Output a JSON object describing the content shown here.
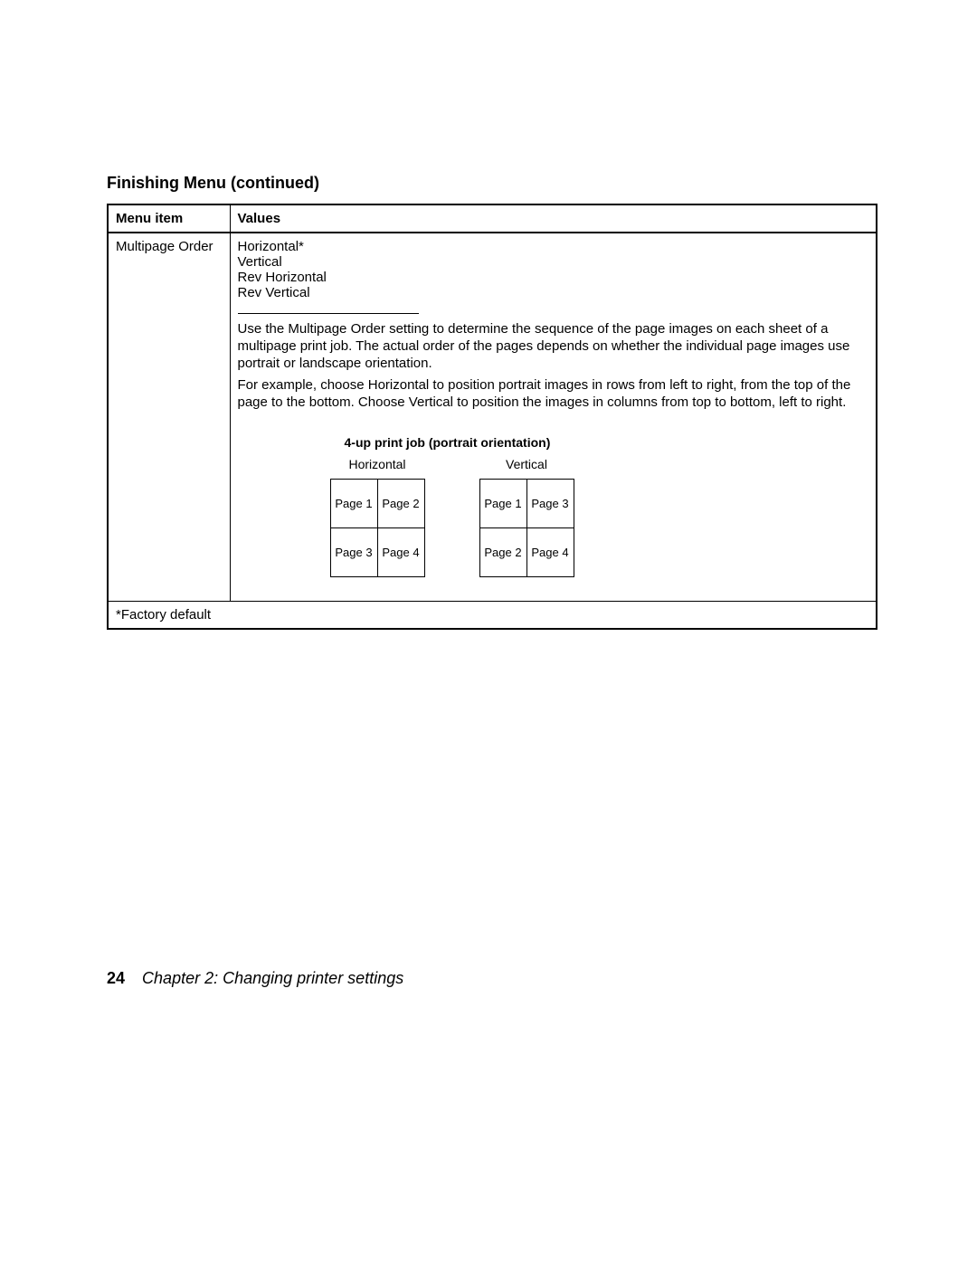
{
  "section_title": "Finishing Menu (continued)",
  "table": {
    "headers": {
      "menu_item": "Menu item",
      "values": "Values"
    },
    "row": {
      "menu_item": "Multipage Order",
      "options": [
        "Horizontal*",
        "Vertical",
        "Rev Horizontal",
        "Rev Vertical"
      ],
      "para1": "Use the Multipage Order setting to determine the sequence of the page images on each sheet of a multipage print job. The actual order of the pages depends on whether the individual page images use portrait or landscape orientation.",
      "para2": "For example, choose Horizontal to position portrait images in rows from left to right, from the top of the page to the bottom. Choose Vertical to position the images in columns from top to bottom, left to right."
    },
    "diagram": {
      "title": "4-up print job (portrait orientation)",
      "horizontal": {
        "label": "Horizontal",
        "cells": [
          "Page 1",
          "Page 2",
          "Page 3",
          "Page 4"
        ]
      },
      "vertical": {
        "label": "Vertical",
        "cells": [
          "Page 1",
          "Page 3",
          "Page 2",
          "Page 4"
        ]
      }
    },
    "footer_note": "*Factory default"
  },
  "page_footer": {
    "number": "24",
    "chapter": "Chapter 2: Changing printer settings"
  }
}
